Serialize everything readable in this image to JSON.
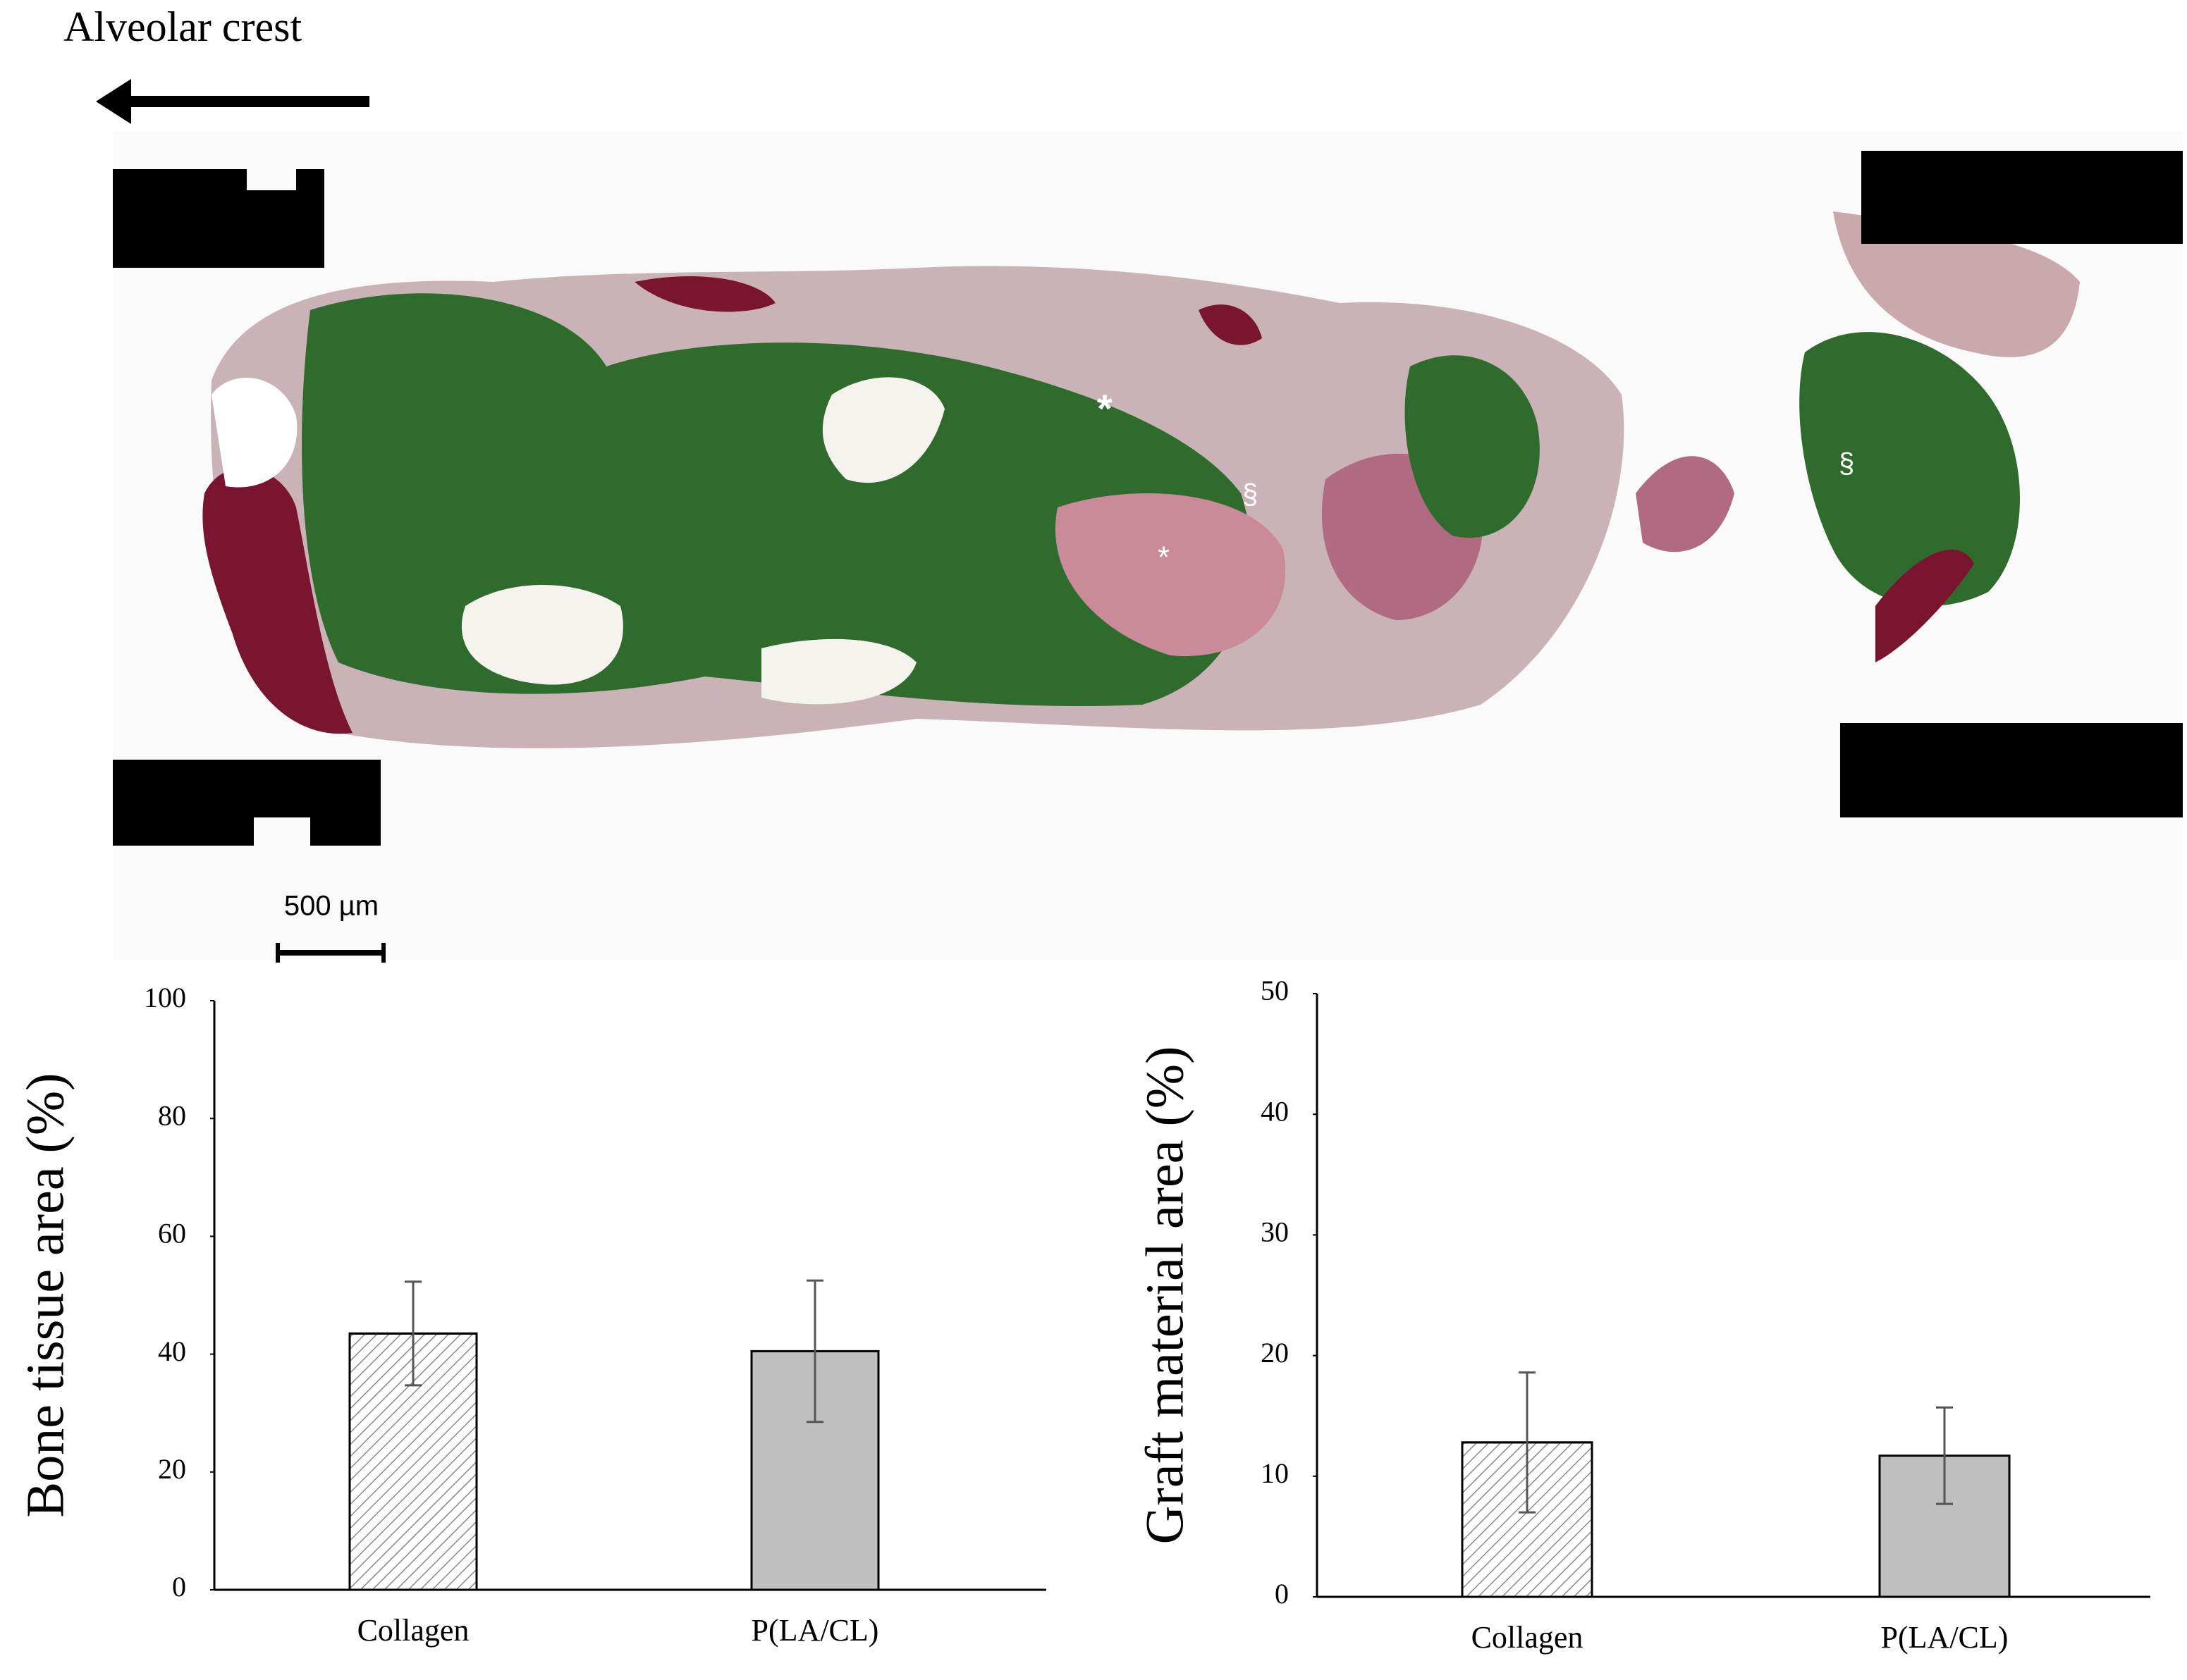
{
  "figure": {
    "direction_label": "Alveolar crest",
    "scale_bar": "500 µm",
    "markers": [
      "*",
      "*",
      "§",
      "§"
    ]
  },
  "chart_data": [
    {
      "type": "bar",
      "ylabel": "Bone tissue area (%)",
      "categories": [
        "Collagen",
        "P(LA/CL)"
      ],
      "values": [
        43.5,
        40.5
      ],
      "errors": [
        8.8,
        12
      ],
      "colors": [
        "#ffffff",
        "#bfbfbf"
      ],
      "hatch": [
        true,
        false
      ],
      "ylim": [
        0,
        100
      ],
      "yticks": [
        0,
        20,
        40,
        60,
        80,
        100
      ]
    },
    {
      "type": "bar",
      "ylabel": "Graft material area (%)",
      "categories": [
        "Collagen",
        "P(LA/CL)"
      ],
      "values": [
        12.8,
        11.7
      ],
      "errors": [
        5.8,
        4
      ],
      "colors": [
        "#ffffff",
        "#bfbfbf"
      ],
      "hatch": [
        true,
        false
      ],
      "ylim": [
        0,
        50
      ],
      "yticks": [
        0,
        10,
        20,
        30,
        40,
        50
      ]
    }
  ]
}
